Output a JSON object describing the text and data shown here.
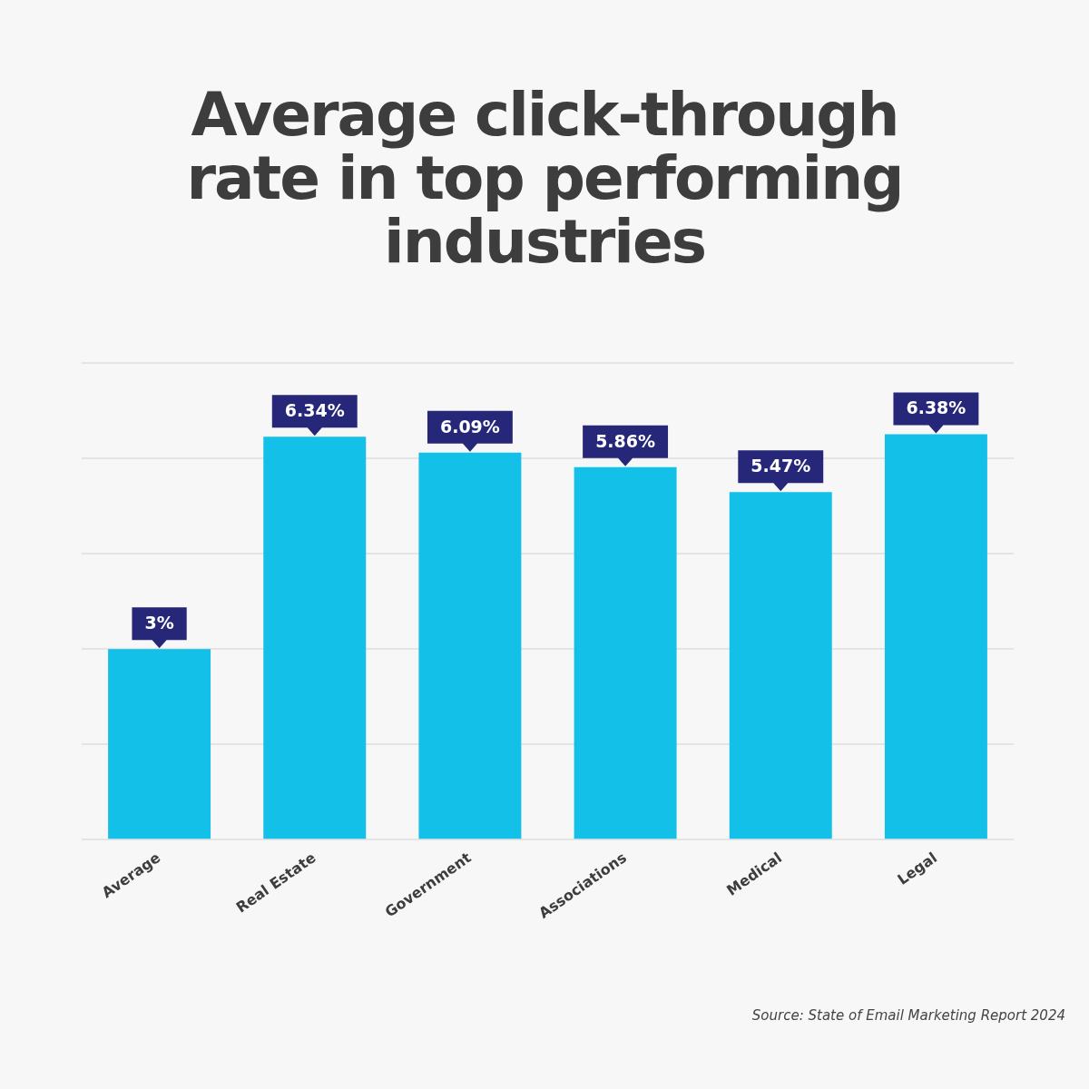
{
  "chart_data": {
    "type": "bar",
    "title": "Average click-through rate in top performing industries",
    "categories": [
      "Average",
      "Real Estate",
      "Government",
      "Associations",
      "Medical",
      "Legal"
    ],
    "values": [
      3,
      6.34,
      6.09,
      5.86,
      5.47,
      6.38
    ],
    "value_labels": [
      "3%",
      "6.34%",
      "6.09%",
      "5.86%",
      "5.47%",
      "6.38%"
    ],
    "color": "#12c0e8",
    "ylim": [
      0,
      7.5
    ],
    "yticks": [
      {
        "value": 0,
        "label": null
      },
      {
        "value": 1.5,
        "label": null
      },
      {
        "value": 3,
        "label": null
      },
      {
        "value": 4.5,
        "label": null
      },
      {
        "value": 6,
        "label": null
      },
      {
        "value": 7.5,
        "label": null
      }
    ],
    "grid": "y",
    "tick_labels": "x",
    "annotations": [
      "Source: State of Email Marketing Report 2024"
    ]
  }
}
